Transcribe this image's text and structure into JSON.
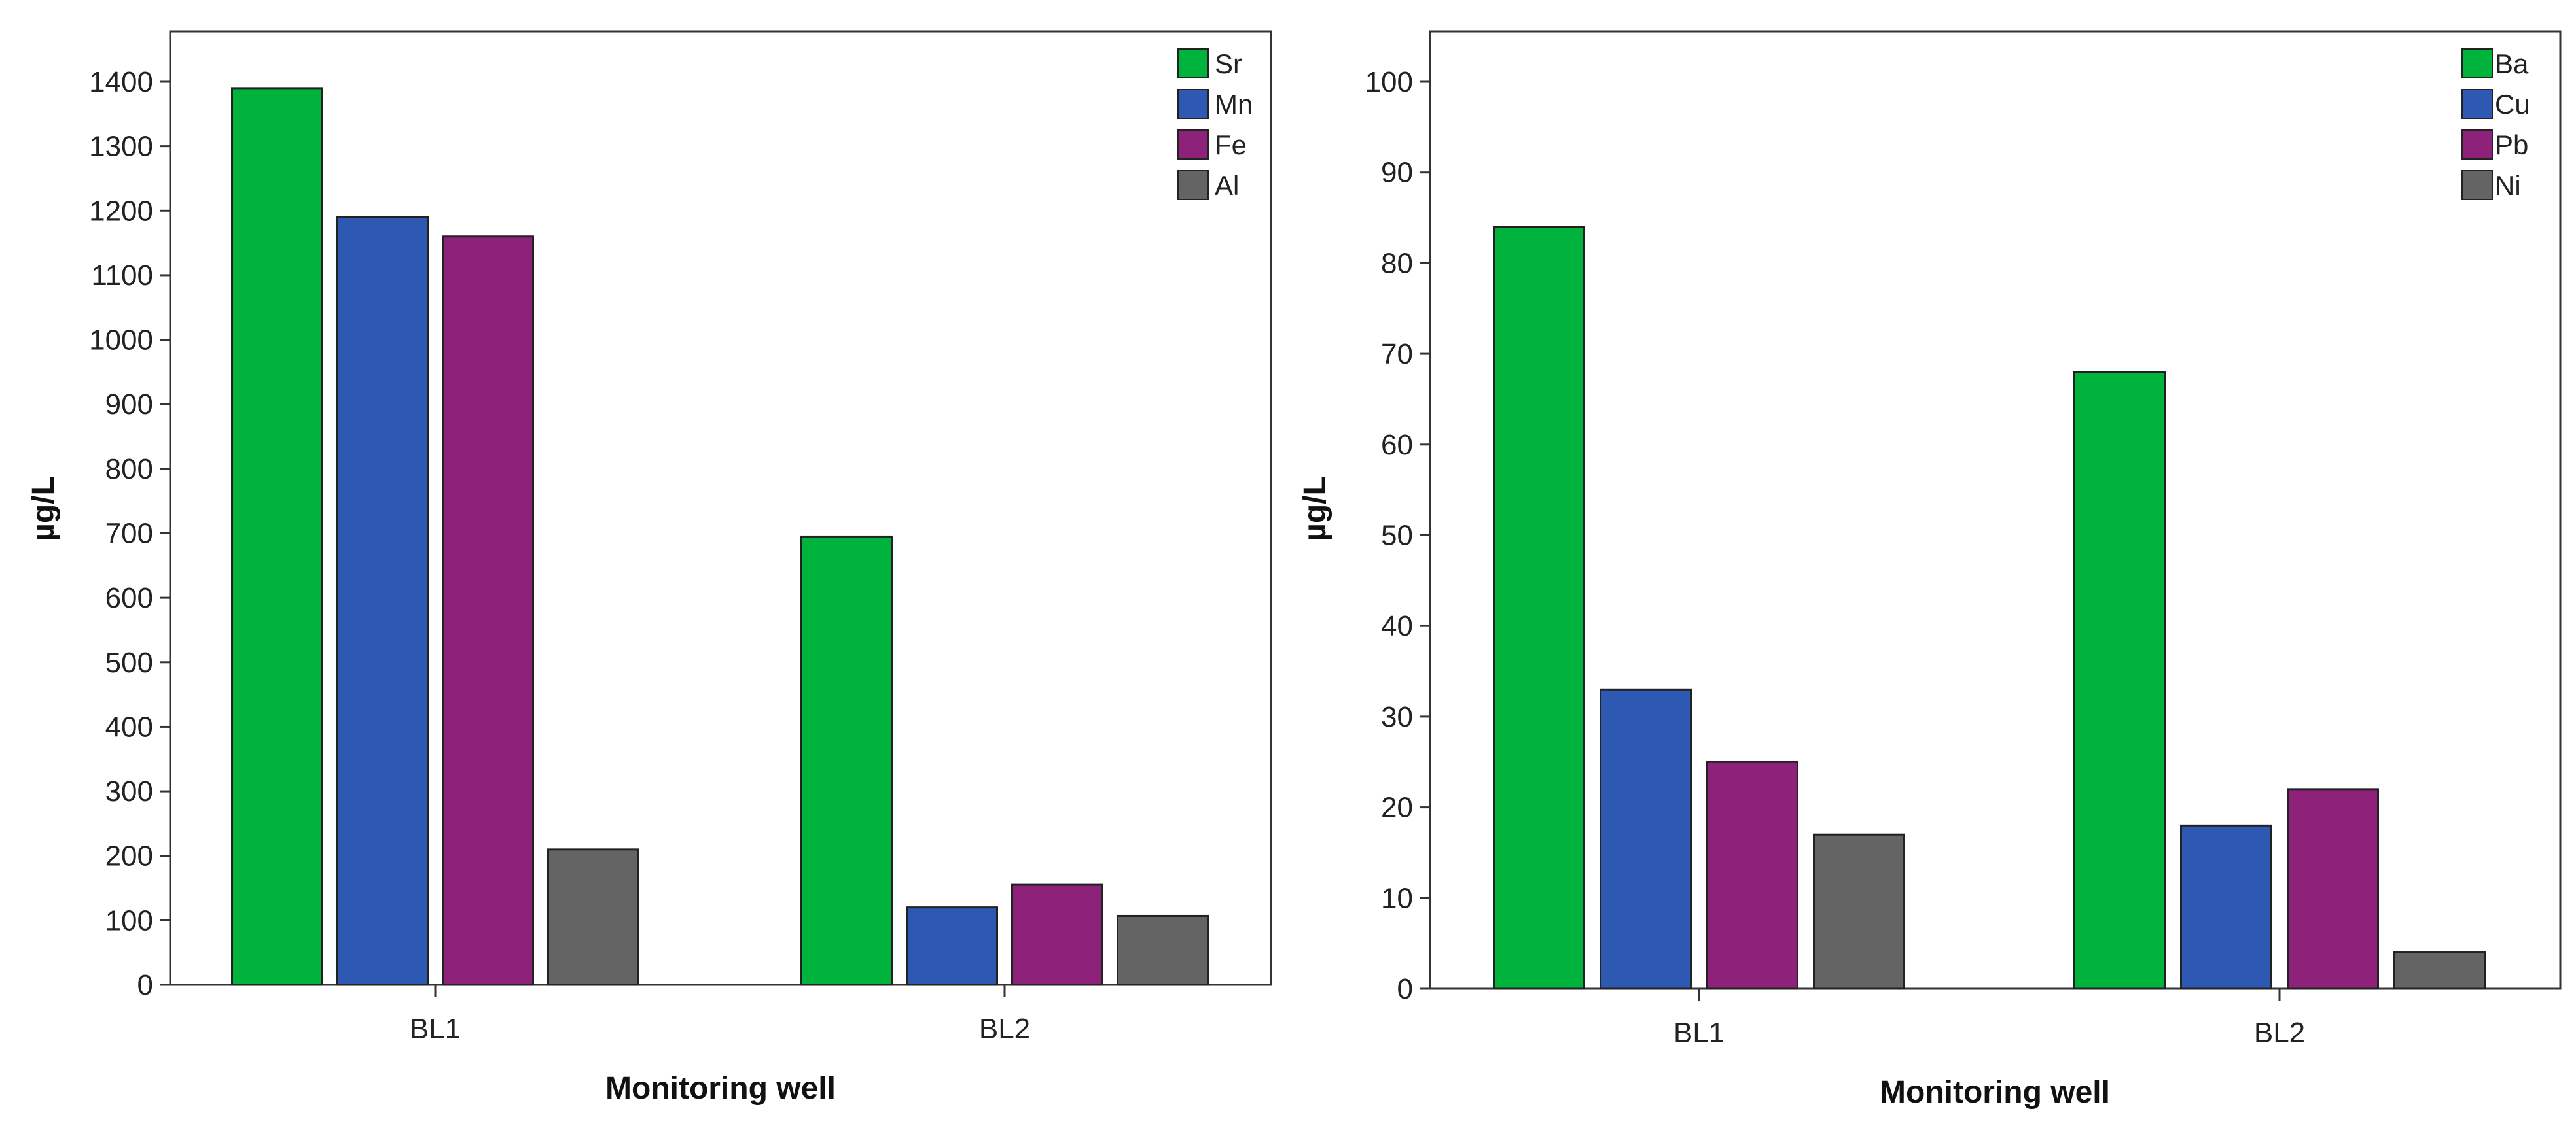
{
  "chart_data": [
    {
      "type": "bar",
      "title": "",
      "xlabel": "Monitoring well",
      "ylabel": "µg/L",
      "categories": [
        "BL1",
        "BL2"
      ],
      "ylim": [
        0,
        1400
      ],
      "ytick_step": 100,
      "grid": false,
      "legend_position": "top-right",
      "series": [
        {
          "name": "Sr",
          "color": "#00b33c",
          "values": [
            1390,
            695
          ]
        },
        {
          "name": "Mn",
          "color": "#2d59b3",
          "values": [
            1190,
            120
          ]
        },
        {
          "name": "Fe",
          "color": "#8e227a",
          "values": [
            1160,
            155
          ]
        },
        {
          "name": "Al",
          "color": "#646464",
          "values": [
            210,
            107
          ]
        }
      ]
    },
    {
      "type": "bar",
      "title": "",
      "xlabel": "Monitoring well",
      "ylabel": "µg/L",
      "categories": [
        "BL1",
        "BL2"
      ],
      "ylim": [
        0,
        100
      ],
      "ytick_step": 10,
      "grid": false,
      "legend_position": "top-right",
      "series": [
        {
          "name": "Ba",
          "color": "#00b33c",
          "values": [
            84,
            68
          ]
        },
        {
          "name": "Cu",
          "color": "#2d59b3",
          "values": [
            33,
            18
          ]
        },
        {
          "name": "Pb",
          "color": "#8e227a",
          "values": [
            25,
            22
          ]
        },
        {
          "name": "Ni",
          "color": "#646464",
          "values": [
            17,
            4
          ]
        }
      ]
    }
  ]
}
